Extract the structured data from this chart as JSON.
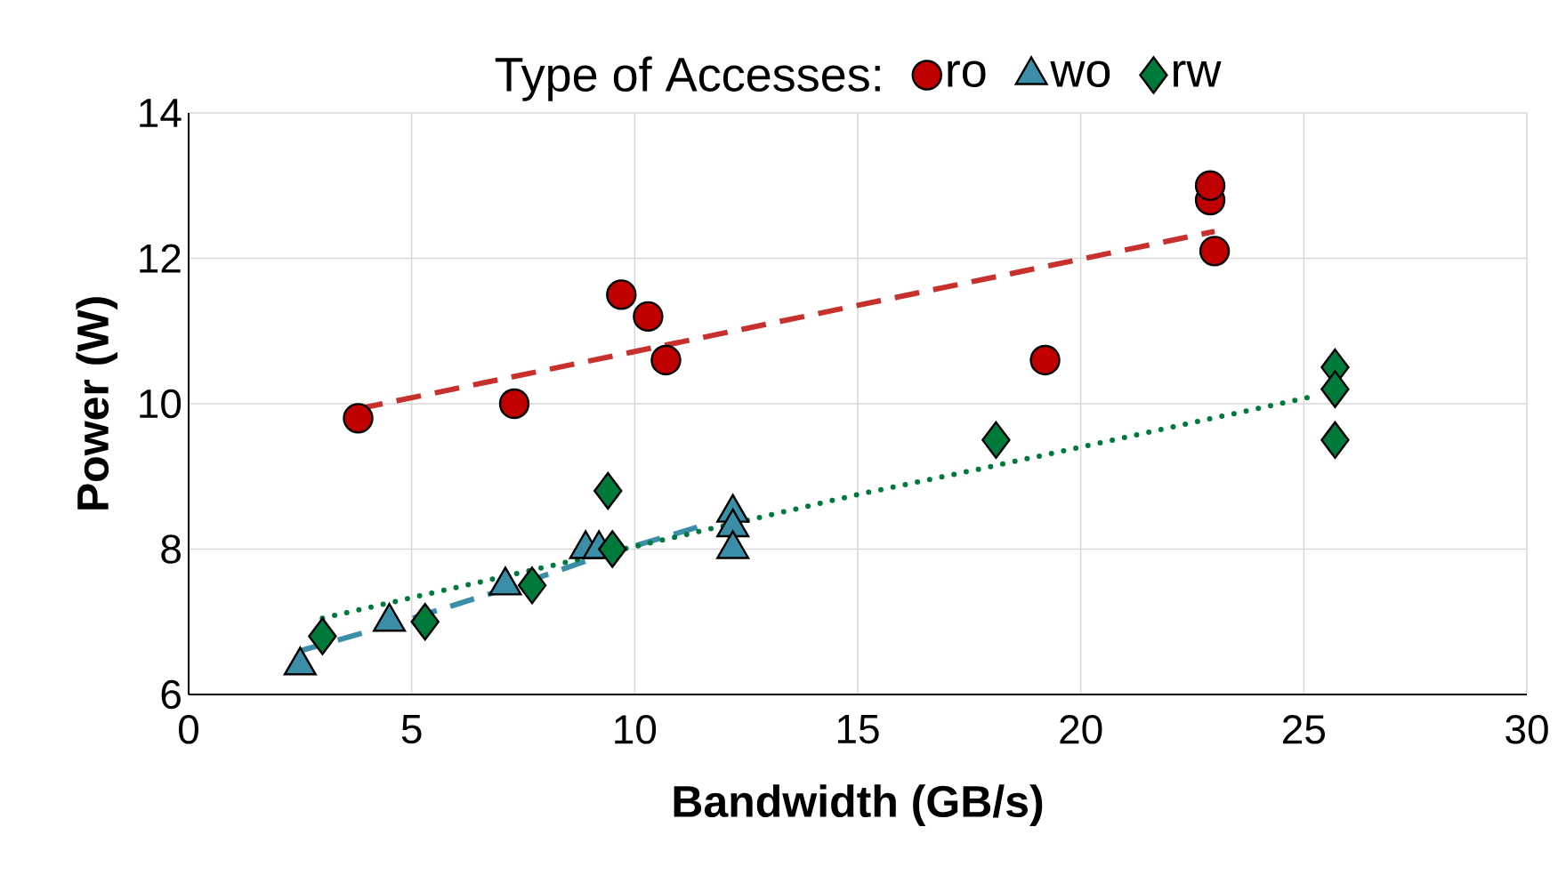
{
  "chart_data": {
    "type": "scatter",
    "legend_title": "Type of Accesses:",
    "xlabel": "Bandwidth (GB/s)",
    "ylabel": "Power (W)",
    "xlim": [
      0,
      30
    ],
    "ylim": [
      6,
      14
    ],
    "xticks": [
      0,
      5,
      10,
      15,
      20,
      25,
      30
    ],
    "yticks": [
      6,
      8,
      10,
      12,
      14
    ],
    "grid": true,
    "legend": "top",
    "series": [
      {
        "name": "ro",
        "color": "#c00000",
        "marker": "circle",
        "x": [
          3.8,
          7.3,
          9.7,
          10.3,
          10.7,
          19.2,
          22.9,
          22.9,
          23.0
        ],
        "values": [
          9.8,
          10.0,
          11.5,
          11.2,
          10.6,
          10.6,
          12.8,
          13.0,
          12.1
        ]
      },
      {
        "name": "wo",
        "color": "#3a8ea8",
        "marker": "triangle",
        "x": [
          2.5,
          4.5,
          7.1,
          8.9,
          9.2,
          12.2,
          12.2,
          12.2
        ],
        "values": [
          6.4,
          7.0,
          7.5,
          8.0,
          8.0,
          8.5,
          8.3,
          8.0
        ]
      },
      {
        "name": "rw",
        "color": "#007a3a",
        "marker": "diamond",
        "x": [
          3.0,
          5.3,
          7.7,
          9.4,
          9.5,
          18.1,
          25.7,
          25.7,
          25.7
        ],
        "values": [
          6.8,
          7.0,
          7.5,
          8.8,
          8.0,
          9.5,
          10.5,
          10.2,
          9.5
        ]
      },
      {
        "type": "line",
        "color": "#c8302e",
        "line_style": "dashed",
        "x": [
          3.8,
          23.0
        ],
        "values": [
          9.93,
          12.37
        ]
      },
      {
        "type": "line",
        "color": "#3a8ea8",
        "line_style": "dashed",
        "x": [
          2.5,
          4.5,
          7.1,
          9.2,
          11.4
        ],
        "values": [
          6.6,
          6.95,
          7.45,
          7.9,
          8.3
        ]
      },
      {
        "type": "line",
        "color": "#007a3a",
        "line_style": "dotted",
        "x": [
          3.0,
          9.4,
          15.0,
          18.1,
          25.2
        ],
        "values": [
          7.05,
          7.95,
          8.75,
          9.15,
          10.1
        ]
      }
    ]
  }
}
